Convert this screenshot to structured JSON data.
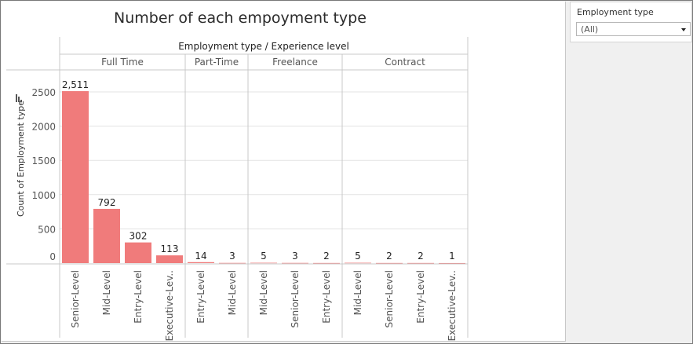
{
  "filter": {
    "label": "Employment type",
    "value": "(All)"
  },
  "colors": {
    "bar": "#f07b7b",
    "grid": "#e3e3e3",
    "divider": "#c8c8c8",
    "text": "#555555"
  },
  "chart_data": {
    "type": "bar",
    "title": "Number of each empoyment type",
    "column_header": "Employment type / Experience level",
    "ylabel": "Count of Employment type",
    "ylim": [
      0,
      2700
    ],
    "yticks": [
      0,
      500,
      1000,
      1500,
      2000,
      2500
    ],
    "grid": true,
    "groups": [
      {
        "name": "Full Time",
        "bars": [
          {
            "category": "Senior-Level",
            "value": 2511,
            "label": "2,511"
          },
          {
            "category": "Mid-Level",
            "value": 792,
            "label": "792"
          },
          {
            "category": "Entry-Level",
            "value": 302,
            "label": "302"
          },
          {
            "category": "Executive-Lev..",
            "value": 113,
            "label": "113"
          }
        ]
      },
      {
        "name": "Part-Time",
        "bars": [
          {
            "category": "Entry-Level",
            "value": 14,
            "label": "14"
          },
          {
            "category": "Mid-Level",
            "value": 3,
            "label": "3"
          }
        ]
      },
      {
        "name": "Freelance",
        "bars": [
          {
            "category": "Mid-Level",
            "value": 5,
            "label": "5"
          },
          {
            "category": "Senior-Level",
            "value": 3,
            "label": "3"
          },
          {
            "category": "Entry-Level",
            "value": 2,
            "label": "2"
          }
        ]
      },
      {
        "name": "Contract",
        "bars": [
          {
            "category": "Mid-Level",
            "value": 5,
            "label": "5"
          },
          {
            "category": "Senior-Level",
            "value": 2,
            "label": "2"
          },
          {
            "category": "Entry-Level",
            "value": 2,
            "label": "2"
          },
          {
            "category": "Executive-Lev..",
            "value": 1,
            "label": "1"
          }
        ]
      }
    ]
  }
}
